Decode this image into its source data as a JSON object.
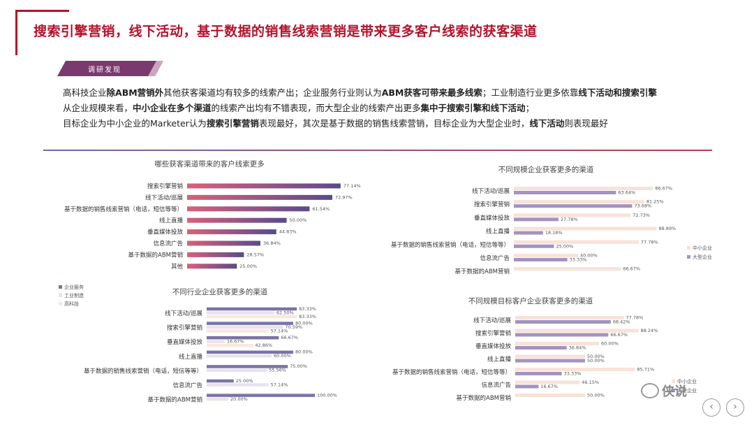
{
  "page": {
    "title": "搜索引擎营销，线下活动，基于数据的销售线索营销是带来更多客户线索的获客渠道",
    "tag": "调研发现",
    "paragraphs": [
      [
        {
          "t": "高科技企业"
        },
        {
          "t": "除ABM营销外",
          "b": true
        },
        {
          "t": "其他获客渠道均有较多的线索产出；企业服务行业则认为"
        },
        {
          "t": "ABM获客可带来最多线索",
          "b": true
        },
        {
          "t": "；工业制造行业更多依靠"
        },
        {
          "t": "线下活动和搜索引擎",
          "b": true
        }
      ],
      [
        {
          "t": "从企业规模来看，"
        },
        {
          "t": "中小企业在多个渠道",
          "b": true
        },
        {
          "t": "的线索产出均有不错表现，而大型企业的线索产出更多"
        },
        {
          "t": "集中于搜索引擎和线下活动",
          "b": true
        },
        {
          "t": "；"
        }
      ],
      [
        {
          "t": "目标企业为中小企业的Marketer认为"
        },
        {
          "t": "搜索引擎营销",
          "b": true
        },
        {
          "t": "表现最好，其次是基于数据的销售线索营销，目标企业为大型企业时，"
        },
        {
          "t": "线下活动",
          "b": true
        },
        {
          "t": "则表现最好"
        }
      ]
    ],
    "watermark": "侠说",
    "nav_prev": "‹",
    "nav_next": "›"
  },
  "colors": {
    "brand": "#b5122b",
    "tag_fill": "#7b3a6e",
    "bar_gradient_start": "#d9607a",
    "bar_gradient_end": "#5a4a8c",
    "enterprise_service": "#7b72a8",
    "industrial": "#e8e3ee",
    "hightech": "#f8e8e0",
    "smb": "#f8e2d8",
    "large": "#a393c0"
  },
  "chart_data": [
    {
      "type": "bar",
      "orientation": "horizontal",
      "title": "哪些获客渠道带来的客户线索更多",
      "categories": [
        "搜索引擎营销",
        "线下活动/巡展",
        "基于数据的销售线索营销（电话，短信等等）",
        "线上直播",
        "垂直媒体投放",
        "信息流广告",
        "基于数据的ABM营销",
        "其他"
      ],
      "values": [
        77.14,
        72.97,
        61.54,
        50.0,
        44.83,
        36.84,
        28.57,
        25.0
      ],
      "value_labels": [
        "77.14%",
        "72.97%",
        "61.54%",
        "50.00%",
        "44.83%",
        "36.84%",
        "28.57%",
        "25.00%"
      ]
    },
    {
      "type": "bar",
      "orientation": "horizontal",
      "title": "不同规模企业获客更多的渠道",
      "categories": [
        "线下活动/巡展",
        "搜索引擎营销",
        "垂直媒体投放",
        "线上直播",
        "基于数据的销售线索营销（电话，短信等等）",
        "信息流广告",
        "基于数据的ABM营销"
      ],
      "series": [
        {
          "name": "中小企业",
          "values": [
            86.67,
            81.25,
            72.73,
            88.89,
            77.78,
            40.0,
            66.67
          ],
          "labels": [
            "86.67%",
            "81.25%",
            "72.73%",
            "88.89%",
            "77.78%",
            "40.00%",
            "66.67%"
          ]
        },
        {
          "name": "大型企业",
          "values": [
            63.64,
            73.68,
            27.78,
            18.18,
            25.0,
            33.33,
            null
          ],
          "labels": [
            "63.64%",
            "73.68%",
            "27.78%",
            "18.18%",
            "25.00%",
            "33.33%",
            ""
          ]
        }
      ],
      "legend": "right"
    },
    {
      "type": "bar",
      "orientation": "horizontal",
      "title": "不同行业企业获客更多的渠道",
      "categories": [
        "线下活动/巡展",
        "搜索引擎营销",
        "垂直媒体投放",
        "线上直播",
        "基于数据的销售线索营销（电话，短信等等）",
        "信息流广告",
        "基于数据的ABM营销"
      ],
      "series": [
        {
          "name": "企业服务",
          "values": [
            83.33,
            80.0,
            66.67,
            80.0,
            75.0,
            25.0,
            100.0
          ],
          "labels": [
            "83.33%",
            "80.00%",
            "66.67%",
            "80.00%",
            "75.00%",
            "25.00%",
            "100.00%"
          ]
        },
        {
          "name": "工业制造",
          "values": [
            62.5,
            70.59,
            16.67,
            60.0,
            55.56,
            57.14,
            20.0
          ],
          "labels": [
            "62.50%",
            "70.59%",
            "16.67%",
            "60.00%",
            "55.56%",
            "57.14%",
            "20.00%"
          ]
        },
        {
          "name": "高科技",
          "values": [
            83.33,
            57.14,
            42.86,
            null,
            null,
            null,
            null
          ],
          "labels": [
            "83.33%",
            "57.14%",
            "42.86%",
            "",
            "",
            "",
            ""
          ]
        }
      ],
      "legend": "top-left"
    },
    {
      "type": "bar",
      "orientation": "horizontal",
      "title": "不同规模目标客户企业获客更多的渠道",
      "categories": [
        "线下活动/巡展",
        "搜索引擎营销",
        "垂直媒体投放",
        "线上直播",
        "基于数据的销售线索营销（电话，短信等等）",
        "信息流广告",
        "基于数据的ABM营销"
      ],
      "series": [
        {
          "name": "中小企业",
          "values": [
            77.78,
            88.24,
            60.0,
            50.0,
            85.71,
            46.15,
            50.0
          ],
          "labels": [
            "77.78%",
            "88.24%",
            "60.00%",
            "50.00%",
            "85.71%",
            "46.15%",
            "50.00%"
          ]
        },
        {
          "name": "大型企业",
          "values": [
            68.42,
            66.67,
            36.84,
            50.0,
            33.33,
            16.67,
            null
          ],
          "labels": [
            "68.42%",
            "66.67%",
            "36.84%",
            "50.00%",
            "33.33%",
            "16.67%",
            ""
          ]
        }
      ],
      "legend": "right"
    }
  ]
}
